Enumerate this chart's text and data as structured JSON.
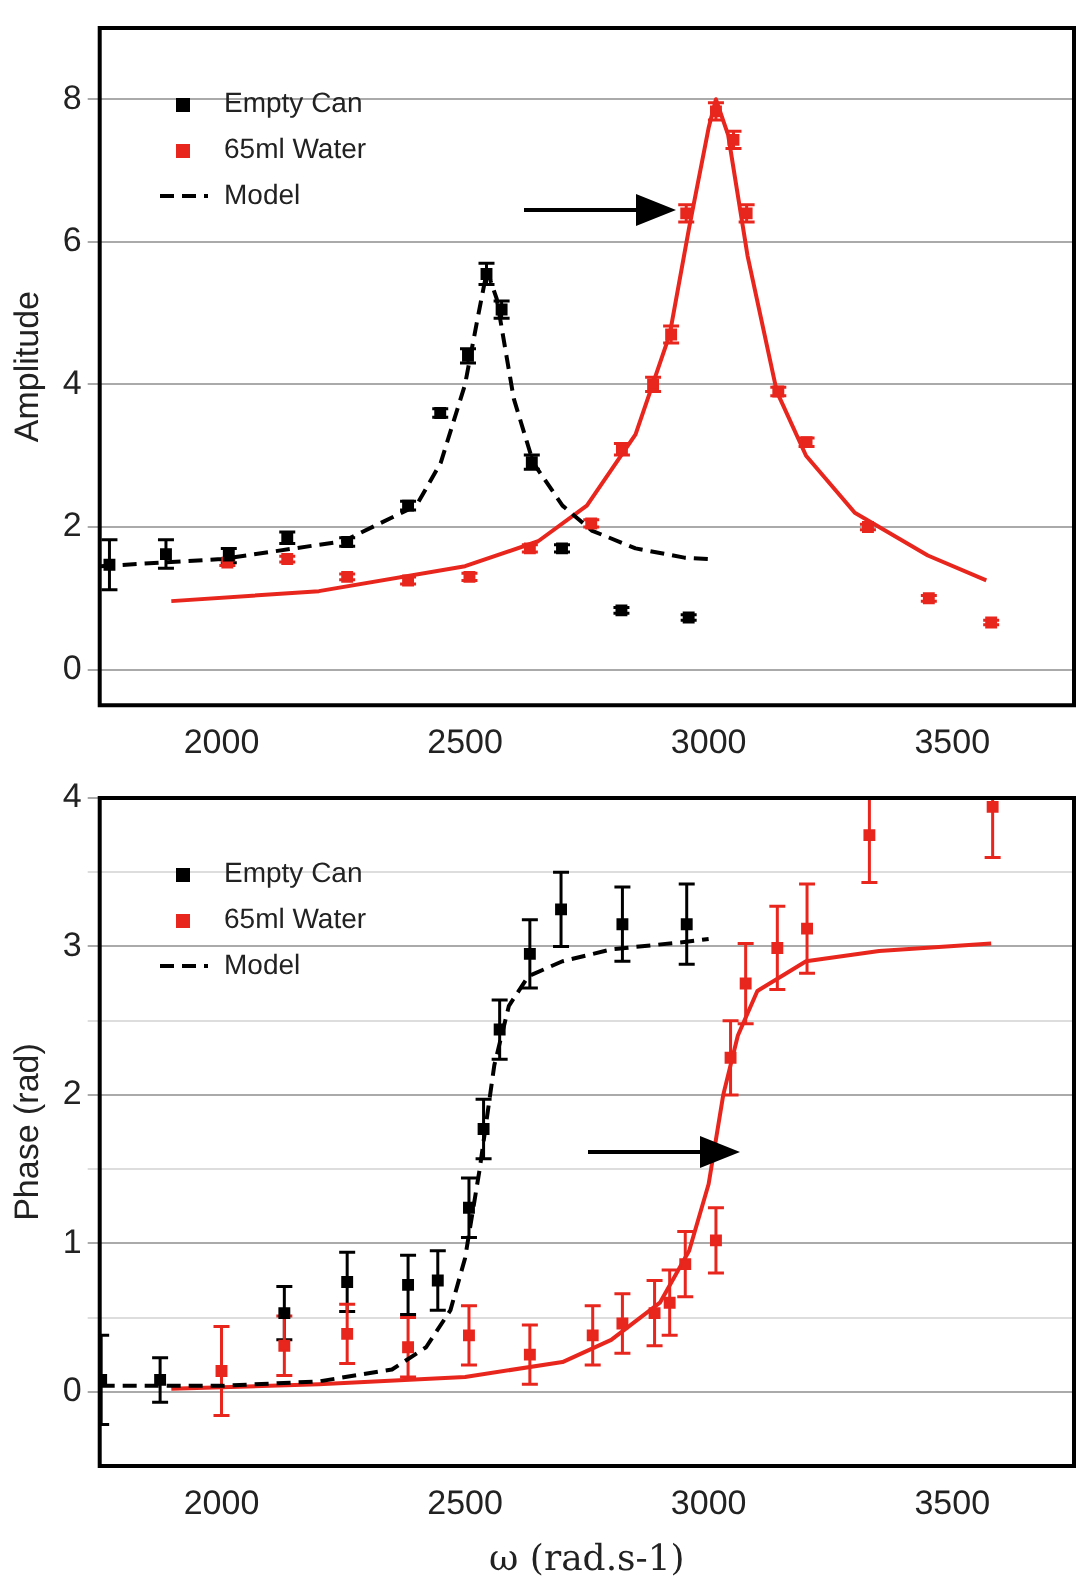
{
  "chart_data": [
    {
      "type": "scatter",
      "ylabel": "Amplitude",
      "xlim": [
        1750,
        3750
      ],
      "xticks": [
        2000,
        2500,
        3000,
        3500
      ],
      "ylim": [
        -0.5,
        9
      ],
      "yticks": [
        0,
        2,
        4,
        6,
        8
      ],
      "grid": "y",
      "legend": "top left",
      "series": [
        {
          "name": "Empty Can",
          "type": "scatter",
          "marker": "square",
          "color": "#000000",
          "x": [
            1770,
            1886,
            2015,
            2135,
            2258,
            2383,
            2449,
            2506,
            2544,
            2575,
            2637,
            2699,
            2821,
            2959
          ],
          "values": [
            1.47,
            1.62,
            1.6,
            1.85,
            1.79,
            2.3,
            3.6,
            4.4,
            5.55,
            5.05,
            2.91,
            1.7,
            0.83,
            0.73
          ],
          "errors": [
            0.35,
            0.2,
            0.1,
            0.08,
            0.06,
            0.06,
            0.06,
            0.1,
            0.15,
            0.12,
            0.1,
            0.05,
            0.04,
            0.04
          ]
        },
        {
          "name": "65ml Water",
          "type": "scatter",
          "marker": "square",
          "color": "#e8261e",
          "x": [
            2012,
            2135,
            2258,
            2383,
            2509,
            2633,
            2759,
            2822,
            2886,
            2923,
            2954,
            3015,
            3051,
            3078,
            3143,
            3201,
            3327,
            3452,
            3580
          ],
          "values": [
            1.5,
            1.55,
            1.3,
            1.25,
            1.3,
            1.7,
            2.05,
            3.09,
            4.0,
            4.7,
            6.4,
            7.83,
            7.43,
            6.4,
            3.9,
            3.19,
            2.0,
            1.0,
            0.66
          ],
          "errors": [
            0.04,
            0.04,
            0.04,
            0.05,
            0.05,
            0.05,
            0.05,
            0.08,
            0.1,
            0.12,
            0.12,
            0.12,
            0.12,
            0.12,
            0.06,
            0.06,
            0.04,
            0.04,
            0.03
          ]
        },
        {
          "name": "Model",
          "type": "line",
          "marker": "none",
          "line_style": "dashed",
          "color": "#000000",
          "x": [
            1752,
            2000,
            2250,
            2400,
            2450,
            2500,
            2525,
            2545,
            2565,
            2600,
            2640,
            2700,
            2760,
            2850,
            2950,
            3000
          ],
          "values": [
            1.45,
            1.55,
            1.8,
            2.3,
            2.9,
            4.0,
            4.9,
            5.6,
            5.2,
            3.8,
            2.9,
            2.3,
            1.95,
            1.7,
            1.57,
            1.55
          ]
        },
        {
          "type": "line",
          "marker": "none",
          "line_style": "solid",
          "color": "#e8261e",
          "x": [
            1897,
            2200,
            2500,
            2650,
            2750,
            2850,
            2920,
            2960,
            3000,
            3015,
            3040,
            3080,
            3140,
            3200,
            3300,
            3450,
            3570
          ],
          "values": [
            0.96,
            1.1,
            1.45,
            1.8,
            2.3,
            3.3,
            4.7,
            6.2,
            7.6,
            8.0,
            7.5,
            5.8,
            3.9,
            3.0,
            2.2,
            1.6,
            1.25
          ]
        }
      ]
    },
    {
      "type": "scatter",
      "xlabel": "ω (rad.s-1)",
      "ylabel": "Phase (rad)",
      "xlim": [
        1750,
        3750
      ],
      "xticks": [
        2000,
        2500,
        3000,
        3500
      ],
      "ylim": [
        -0.5,
        4
      ],
      "yticks": [
        0,
        {
          "value": 0.5,
          "label": null
        },
        1,
        {
          "value": 1.5,
          "label": null
        },
        2,
        {
          "value": 2.5,
          "label": null
        },
        3,
        {
          "value": 3.5,
          "label": null
        },
        4
      ],
      "grid": "y",
      "legend": "top left",
      "series": [
        {
          "name": "Empty Can",
          "type": "scatter",
          "marker": "square",
          "color": "#000000",
          "x": [
            1753,
            1874,
            2129,
            2258,
            2383,
            2444,
            2508,
            2538,
            2571,
            2633,
            2697,
            2823,
            2955
          ],
          "values": [
            0.08,
            0.08,
            0.53,
            0.74,
            0.72,
            0.75,
            1.24,
            1.77,
            2.44,
            2.95,
            3.25,
            3.15,
            3.15
          ],
          "errors": [
            0.3,
            0.15,
            0.18,
            0.2,
            0.2,
            0.2,
            0.2,
            0.2,
            0.2,
            0.23,
            0.25,
            0.25,
            0.27
          ]
        },
        {
          "name": "65ml Water",
          "type": "scatter",
          "marker": "square",
          "color": "#e8261e",
          "x": [
            2000,
            2129,
            2258,
            2383,
            2508,
            2633,
            2762,
            2823,
            2889,
            2920,
            2952,
            3015,
            3045,
            3076,
            3141,
            3202,
            3330,
            3583
          ],
          "values": [
            0.14,
            0.31,
            0.39,
            0.3,
            0.38,
            0.25,
            0.38,
            0.46,
            0.53,
            0.6,
            0.86,
            1.02,
            2.25,
            2.75,
            2.99,
            3.12,
            3.75,
            3.94
          ],
          "errors": [
            0.3,
            0.2,
            0.2,
            0.2,
            0.2,
            0.2,
            0.2,
            0.2,
            0.22,
            0.22,
            0.22,
            0.22,
            0.25,
            0.27,
            0.28,
            0.3,
            [
              3.43,
              4.0
            ],
            [
              3.6,
              4.0
            ]
          ]
        },
        {
          "name": "Model",
          "type": "line",
          "marker": "none",
          "line_style": "dashed",
          "color": "#000000",
          "x": [
            1752,
            2000,
            2200,
            2350,
            2420,
            2470,
            2500,
            2530,
            2560,
            2590,
            2630,
            2700,
            2800,
            2950,
            3000
          ],
          "values": [
            0.04,
            0.04,
            0.07,
            0.15,
            0.3,
            0.55,
            0.9,
            1.5,
            2.2,
            2.6,
            2.8,
            2.9,
            2.98,
            3.03,
            3.05
          ]
        },
        {
          "type": "line",
          "marker": "none",
          "line_style": "solid",
          "color": "#e8261e",
          "x": [
            1897,
            2200,
            2500,
            2700,
            2800,
            2900,
            2960,
            3000,
            3030,
            3060,
            3100,
            3200,
            3350,
            3580
          ],
          "values": [
            0.02,
            0.05,
            0.1,
            0.2,
            0.35,
            0.6,
            0.95,
            1.4,
            2.0,
            2.4,
            2.7,
            2.9,
            2.97,
            3.02
          ]
        }
      ]
    }
  ]
}
